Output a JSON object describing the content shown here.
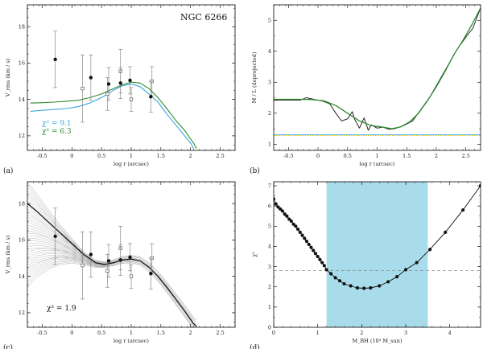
{
  "chart_data": [
    {
      "id": "a",
      "type": "scatter",
      "panel_label": "(a)",
      "title": "NGC 6266",
      "xlabel": "log r (arcsec)",
      "ylabel": "V_rms (km / s)",
      "xlim": [
        -0.75,
        2.75
      ],
      "ylim": [
        11.2,
        19.2
      ],
      "xticks": [
        -0.5,
        0.0,
        0.5,
        1.0,
        1.5,
        2.0,
        2.5
      ],
      "yticks": [
        12,
        14,
        16,
        18
      ],
      "colors": {
        "blue": "#3aa6e0",
        "green": "#2e8b2e",
        "points": "#111111"
      },
      "points_filled": [
        {
          "x": -0.28,
          "y": 16.2,
          "err": 1.55
        },
        {
          "x": 0.32,
          "y": 15.2,
          "err": 1.25
        },
        {
          "x": 0.62,
          "y": 14.85,
          "err": 0.9
        },
        {
          "x": 0.82,
          "y": 14.9,
          "err": 0.85
        },
        {
          "x": 0.98,
          "y": 15.05,
          "err": 0.75
        },
        {
          "x": 1.33,
          "y": 14.15,
          "err": 0.85
        }
      ],
      "points_open": [
        {
          "x": 0.18,
          "y": 14.6,
          "err": 1.85
        },
        {
          "x": 0.6,
          "y": 14.3,
          "err": 0.9
        },
        {
          "x": 0.82,
          "y": 15.55,
          "err": 1.2
        },
        {
          "x": 1.0,
          "y": 14.0,
          "err": 0.65
        },
        {
          "x": 1.35,
          "y": 15.0,
          "err": 0.8
        }
      ],
      "series": [
        {
          "name": "blue model",
          "color": "#3aa6e0",
          "x": [
            -0.7,
            -0.5,
            -0.3,
            -0.1,
            0.1,
            0.3,
            0.5,
            0.7,
            0.85,
            1.0,
            1.15,
            1.3,
            1.45,
            1.6,
            1.75,
            1.9,
            2.0,
            2.05
          ],
          "y": [
            13.35,
            13.4,
            13.45,
            13.5,
            13.6,
            13.8,
            14.1,
            14.5,
            14.75,
            14.85,
            14.7,
            14.3,
            13.85,
            13.2,
            12.6,
            12.0,
            11.6,
            11.3
          ]
        },
        {
          "name": "green model",
          "color": "#2e8b2e",
          "x": [
            -0.7,
            -0.5,
            -0.3,
            -0.1,
            0.1,
            0.3,
            0.5,
            0.7,
            0.85,
            1.0,
            1.15,
            1.3,
            1.45,
            1.6,
            1.75,
            1.9,
            2.05,
            2.1
          ],
          "y": [
            13.8,
            13.82,
            13.85,
            13.9,
            13.95,
            14.1,
            14.3,
            14.6,
            14.8,
            14.95,
            14.9,
            14.6,
            14.1,
            13.5,
            12.85,
            12.3,
            11.6,
            11.3
          ]
        }
      ],
      "annotations": [
        {
          "text": "χ² = 9.1",
          "color": "#3aa6e0"
        },
        {
          "text": "χ² = 6.3",
          "color": "#2e8b2e"
        }
      ]
    },
    {
      "id": "b",
      "type": "line",
      "panel_label": "(b)",
      "xlabel": "log r (arcsec)",
      "ylabel": "M / L (deprojected)",
      "xlim": [
        -0.75,
        2.75
      ],
      "ylim": [
        0.8,
        5.5
      ],
      "xticks": [
        -0.5,
        0.0,
        0.5,
        1.0,
        1.5,
        2.0,
        2.5
      ],
      "yticks": [
        1,
        2,
        3,
        4,
        5
      ],
      "series": [
        {
          "name": "black deprojected",
          "color": "#111111",
          "x": [
            -0.75,
            -0.5,
            -0.3,
            -0.2,
            0.0,
            0.1,
            0.2,
            0.3,
            0.4,
            0.5,
            0.58,
            0.62,
            0.7,
            0.78,
            0.85,
            0.9,
            1.0,
            1.1,
            1.2,
            1.3,
            1.45,
            1.6,
            1.75,
            1.9,
            2.05,
            2.2,
            2.35,
            2.5,
            2.62,
            2.75
          ],
          "y": [
            2.42,
            2.42,
            2.42,
            2.5,
            2.42,
            2.38,
            2.3,
            2.0,
            1.75,
            1.82,
            2.05,
            1.8,
            1.52,
            1.85,
            1.45,
            1.62,
            1.52,
            1.55,
            1.48,
            1.5,
            1.6,
            1.75,
            2.15,
            2.55,
            3.05,
            3.55,
            4.05,
            4.45,
            4.75,
            5.4
          ]
        },
        {
          "name": "green model",
          "color": "#2e8b2e",
          "x": [
            -0.75,
            -0.5,
            -0.3,
            -0.1,
            0.1,
            0.3,
            0.5,
            0.7,
            0.9,
            1.1,
            1.25,
            1.4,
            1.55,
            1.7,
            1.85,
            2.0,
            2.15,
            2.3,
            2.45,
            2.6,
            2.75
          ],
          "y": [
            2.45,
            2.45,
            2.45,
            2.44,
            2.4,
            2.25,
            2.0,
            1.75,
            1.6,
            1.55,
            1.5,
            1.56,
            1.72,
            2.0,
            2.4,
            2.85,
            3.35,
            3.9,
            4.35,
            4.85,
            5.4
          ]
        },
        {
          "name": "blue constant",
          "color": "#3aa6e0",
          "x": [
            -0.75,
            2.75
          ],
          "y": [
            1.3,
            1.3
          ]
        },
        {
          "name": "yellow dotted",
          "color": "#d4c21a",
          "x": [
            -0.75,
            2.75
          ],
          "y": [
            1.28,
            1.28
          ]
        }
      ]
    },
    {
      "id": "c",
      "type": "line",
      "panel_label": "(c)",
      "xlabel": "log r (arcsec)",
      "ylabel": "V_rms (km / s)",
      "xlim": [
        -0.75,
        2.75
      ],
      "ylim": [
        11.2,
        19.2
      ],
      "xticks": [
        -0.5,
        0.0,
        0.5,
        1.0,
        1.5,
        2.0,
        2.5
      ],
      "yticks": [
        12,
        14,
        16,
        18
      ],
      "annotation": "χ² = 1.9",
      "best_fit": {
        "color": "#111111",
        "x": [
          -0.75,
          -0.6,
          -0.4,
          -0.2,
          0.0,
          0.2,
          0.4,
          0.55,
          0.7,
          0.85,
          1.0,
          1.15,
          1.3,
          1.45,
          1.6,
          1.75,
          1.9,
          2.05,
          2.1
        ],
        "y": [
          18.0,
          17.6,
          17.0,
          16.4,
          15.8,
          15.2,
          14.75,
          14.65,
          14.75,
          14.9,
          14.95,
          14.85,
          14.5,
          14.0,
          13.4,
          12.75,
          12.1,
          11.4,
          11.25
        ]
      },
      "models_grey": {
        "count": 40,
        "color": "#b8b8b8",
        "central_start_range": [
          13.4,
          19.2
        ]
      },
      "points_filled": [
        {
          "x": -0.28,
          "y": 16.2,
          "err": 1.55
        },
        {
          "x": 0.32,
          "y": 15.2,
          "err": 1.25
        },
        {
          "x": 0.62,
          "y": 14.85,
          "err": 0.9
        },
        {
          "x": 0.82,
          "y": 14.9,
          "err": 0.85
        },
        {
          "x": 0.98,
          "y": 15.05,
          "err": 0.75
        },
        {
          "x": 1.33,
          "y": 14.15,
          "err": 0.85
        }
      ],
      "points_open": [
        {
          "x": 0.18,
          "y": 14.6,
          "err": 1.85
        },
        {
          "x": 0.6,
          "y": 14.3,
          "err": 0.9
        },
        {
          "x": 0.82,
          "y": 15.55,
          "err": 1.2
        },
        {
          "x": 1.0,
          "y": 14.0,
          "err": 0.65
        },
        {
          "x": 1.35,
          "y": 15.0,
          "err": 0.8
        }
      ]
    },
    {
      "id": "d",
      "type": "scatter",
      "panel_label": "(d)",
      "xlabel": "M_BH (10³ M_sun)",
      "ylabel": "χ²",
      "xlim": [
        0,
        4.7
      ],
      "ylim": [
        0,
        7.2
      ],
      "xticks": [
        0,
        1,
        2,
        3,
        4
      ],
      "yticks": [
        0,
        1,
        2,
        3,
        4,
        5,
        6,
        7
      ],
      "shaded_range": [
        1.2,
        3.5
      ],
      "shade_color": "#a9dcea",
      "threshold": 2.8,
      "x": [
        0.0,
        0.05,
        0.1,
        0.15,
        0.2,
        0.25,
        0.3,
        0.35,
        0.4,
        0.45,
        0.5,
        0.55,
        0.6,
        0.65,
        0.7,
        0.75,
        0.8,
        0.85,
        0.9,
        0.95,
        1.0,
        1.05,
        1.1,
        1.15,
        1.2,
        1.3,
        1.4,
        1.5,
        1.6,
        1.75,
        1.9,
        2.05,
        2.2,
        2.4,
        2.6,
        2.8,
        3.0,
        3.25,
        3.55,
        3.9,
        4.3,
        4.7
      ],
      "y": [
        6.35,
        6.1,
        5.95,
        5.85,
        5.75,
        5.6,
        5.5,
        5.35,
        5.25,
        5.1,
        5.0,
        4.85,
        4.7,
        4.55,
        4.4,
        4.25,
        4.1,
        3.95,
        3.8,
        3.65,
        3.5,
        3.35,
        3.2,
        3.05,
        2.85,
        2.65,
        2.45,
        2.3,
        2.15,
        2.05,
        1.95,
        1.93,
        1.95,
        2.05,
        2.25,
        2.5,
        2.85,
        3.2,
        3.85,
        4.7,
        5.8,
        7.0
      ]
    }
  ]
}
